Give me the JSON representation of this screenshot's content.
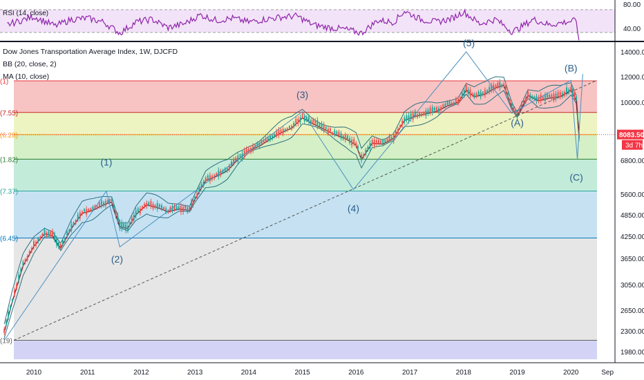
{
  "rsi_pane": {
    "label": "RSI (14, close)",
    "axis_ticks": [
      "80.00",
      "40.00"
    ],
    "upper_band": 70,
    "lower_band": 30,
    "ylim": [
      20,
      90
    ]
  },
  "main_pane": {
    "title": "Dow Jones Transportation Average Index, 1W, DJCFD",
    "indicator_bb": "BB (20, close, 2)",
    "indicator_ma": "MA (10, close)",
    "price_ticks": [
      "14000.00",
      "12000.00",
      "10000.00",
      "8000.00",
      "6800.00",
      "5600.00",
      "4850.00",
      "4250.00",
      "3650.00",
      "3050.00",
      "2650.00",
      "2300.00",
      "1980.00"
    ],
    "year_ticks": [
      "2010",
      "2011",
      "2012",
      "2013",
      "2014",
      "2015",
      "2016",
      "2017",
      "2018",
      "2019",
      "2020",
      "Sep"
    ],
    "last_price": "8083.50",
    "countdown": "3d 7h",
    "accent_color": "#f23645",
    "price_color": "#131722"
  },
  "fib_levels": [
    {
      "label": "(1)",
      "price": 11650,
      "color": "#f7c3c3",
      "line": "#e53935"
    },
    {
      "label": "(7.55)",
      "price": 9350,
      "color": "#eef3c2",
      "line": "#c62828"
    },
    {
      "label": "(6.28)",
      "price": 8080,
      "color": "#d5f0c6",
      "line": "#ff9800"
    },
    {
      "label": "(1.82)",
      "price": 6850,
      "color": "#c3ebd9",
      "line": "#2e7d32"
    },
    {
      "label": "(7.37)",
      "price": 5700,
      "color": "#c6e2f2",
      "line": "#26a69a"
    },
    {
      "label": "(6.45)",
      "price": 4200,
      "color": "#e6e6e6",
      "line": "#0277bd"
    },
    {
      "label": "(19)",
      "price": 2150,
      "color": "#d3d4f5",
      "line": "#616161"
    }
  ],
  "wave_labels": [
    "(1)",
    "(2)",
    "(3)",
    "(4)",
    "(5)",
    "(A)",
    "(B)",
    "(C)"
  ],
  "chart_data": {
    "type": "line",
    "xlabel": "",
    "ylabel": "",
    "log_scale": true,
    "ylim": [
      1850,
      15000
    ],
    "series": [
      {
        "name": "Dow Jones Transportation Average Index",
        "x": [
          2009.45,
          2009.6,
          2009.8,
          2010.0,
          2010.2,
          2010.35,
          2010.5,
          2010.7,
          2010.9,
          2011.1,
          2011.3,
          2011.45,
          2011.6,
          2011.75,
          2011.9,
          2012.1,
          2012.3,
          2012.5,
          2012.7,
          2012.9,
          2013.0,
          2013.2,
          2013.4,
          2013.6,
          2013.8,
          2014.0,
          2014.2,
          2014.4,
          2014.6,
          2014.8,
          2015.0,
          2015.2,
          2015.4,
          2015.6,
          2015.8,
          2016.0,
          2016.1,
          2016.3,
          2016.5,
          2016.7,
          2016.9,
          2017.1,
          2017.3,
          2017.5,
          2017.7,
          2017.9,
          2018.05,
          2018.2,
          2018.4,
          2018.6,
          2018.75,
          2018.9,
          2019.0,
          2019.2,
          2019.4,
          2019.6,
          2019.8,
          2020.0,
          2020.1,
          2020.15
        ],
        "values": [
          2300,
          2800,
          3500,
          4000,
          4350,
          4300,
          3950,
          4500,
          4950,
          5050,
          5250,
          5350,
          4550,
          4500,
          4900,
          5250,
          5150,
          5000,
          5100,
          5050,
          5450,
          6100,
          6250,
          6450,
          6900,
          7300,
          7550,
          7900,
          8250,
          8500,
          9100,
          8750,
          8450,
          8150,
          7950,
          7600,
          6900,
          7700,
          7650,
          7950,
          8950,
          9200,
          9350,
          9500,
          9850,
          10100,
          11000,
          10500,
          10700,
          11200,
          11400,
          9750,
          9200,
          10600,
          10200,
          10400,
          10500,
          11000,
          10200,
          8083
        ]
      },
      {
        "name": "RSI (14, close)",
        "x": [
          2009.5,
          2010.0,
          2010.4,
          2010.7,
          2011.0,
          2011.3,
          2011.6,
          2011.9,
          2012.2,
          2012.5,
          2012.8,
          2013.1,
          2013.4,
          2013.7,
          2014.0,
          2014.3,
          2014.6,
          2014.9,
          2015.2,
          2015.5,
          2015.8,
          2016.1,
          2016.4,
          2016.7,
          2016.9,
          2017.2,
          2017.5,
          2017.8,
          2018.0,
          2018.3,
          2018.6,
          2018.9,
          2019.0,
          2019.3,
          2019.6,
          2019.9,
          2020.1,
          2020.15
        ],
        "values": [
          50,
          65,
          48,
          60,
          62,
          55,
          35,
          55,
          60,
          45,
          52,
          68,
          58,
          62,
          55,
          60,
          64,
          66,
          50,
          45,
          42,
          35,
          58,
          55,
          75,
          60,
          55,
          62,
          74,
          52,
          60,
          38,
          42,
          60,
          50,
          55,
          58,
          22
        ]
      }
    ]
  }
}
